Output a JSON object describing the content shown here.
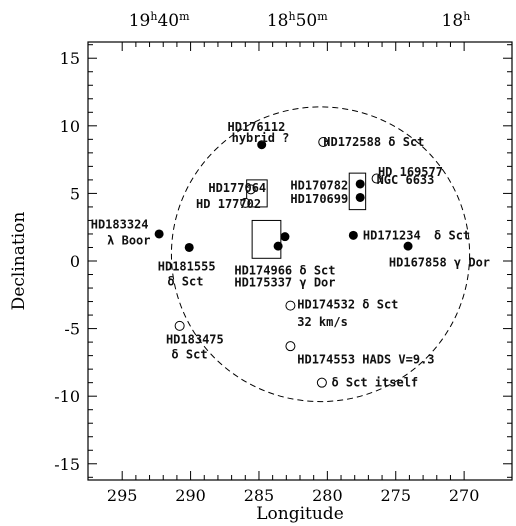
{
  "chart_data": {
    "type": "scatter",
    "title": "",
    "xlabel": "Longitude",
    "ylabel": "Declination",
    "xlim": [
      297.5,
      266.5
    ],
    "ylim": [
      -16.2,
      16.2
    ],
    "grid": false,
    "x_ticks": [
      295,
      290,
      285,
      280,
      275,
      270
    ],
    "y_ticks": [
      15,
      10,
      5,
      0,
      -5,
      -10,
      -15
    ],
    "top_axis_ticks": [
      {
        "lon": 292.3,
        "label": "19",
        "sup1": "h",
        "mid": "40",
        "sup2": "m"
      },
      {
        "lon": 282.2,
        "label": "18",
        "sup1": "h",
        "mid": "50",
        "sup2": "m"
      },
      {
        "lon": 270.6,
        "label": "18",
        "sup1": "h",
        "mid": "",
        "sup2": ""
      }
    ],
    "field_circle": {
      "center_lon": 280.5,
      "center_dec": 0.5,
      "radius_deg": 10.9
    },
    "boxes": [
      {
        "lon1": 284.4,
        "lon2": 285.9,
        "dec1": 6.0,
        "dec2": 4.0
      },
      {
        "lon1": 277.2,
        "lon2": 278.4,
        "dec1": 6.5,
        "dec2": 3.8
      },
      {
        "lon1": 283.4,
        "lon2": 285.5,
        "dec1": 3.0,
        "dec2": 0.2
      }
    ],
    "filled_points": [
      {
        "lon": 284.8,
        "dec": 8.6
      },
      {
        "lon": 277.6,
        "dec": 5.7
      },
      {
        "lon": 277.6,
        "dec": 4.7
      },
      {
        "lon": 292.3,
        "dec": 2.0
      },
      {
        "lon": 278.1,
        "dec": 1.9
      },
      {
        "lon": 283.1,
        "dec": 1.8
      },
      {
        "lon": 283.6,
        "dec": 1.1
      },
      {
        "lon": 290.1,
        "dec": 1.0
      },
      {
        "lon": 274.1,
        "dec": 1.1
      }
    ],
    "open_points": [
      {
        "lon": 280.3,
        "dec": 8.8
      },
      {
        "lon": 276.4,
        "dec": 6.1
      },
      {
        "lon": 285.6,
        "dec": 5.3
      },
      {
        "lon": 286.0,
        "dec": 4.3
      },
      {
        "lon": 282.7,
        "dec": -3.3
      },
      {
        "lon": 282.7,
        "dec": -6.3
      },
      {
        "lon": 290.8,
        "dec": -4.8
      },
      {
        "lon": 280.4,
        "dec": -9.0
      }
    ],
    "annotations": [
      {
        "text": "HD176112",
        "lon": 287.3,
        "dec": 9.9
      },
      {
        "text": "hybrid ?",
        "lon": 287.0,
        "dec": 9.1
      },
      {
        "text": "HD172588 δ Sct",
        "lon": 280.3,
        "dec": 8.8
      },
      {
        "text": "HD 169577",
        "lon": 276.3,
        "dec": 6.6
      },
      {
        "text": "NGC 6633",
        "lon": 276.4,
        "dec": 6.0
      },
      {
        "text": "HD177064",
        "lon": 288.7,
        "dec": 5.4
      },
      {
        "text": "HD170782",
        "lon": 282.7,
        "dec": 5.6
      },
      {
        "text": "HD 177702",
        "lon": 289.6,
        "dec": 4.2
      },
      {
        "text": "HD170699",
        "lon": 282.7,
        "dec": 4.6
      },
      {
        "text": "HD183324",
        "lon": 297.3,
        "dec": 2.7
      },
      {
        "text": "λ Boor",
        "lon": 296.1,
        "dec": 1.5
      },
      {
        "text": "HD171234",
        "lon": 277.4,
        "dec": 1.9
      },
      {
        "text": "δ Sct",
        "lon": 272.2,
        "dec": 1.9
      },
      {
        "text": "HD181555",
        "lon": 292.4,
        "dec": -0.4
      },
      {
        "text": "HD167858 γ Dor",
        "lon": 275.5,
        "dec": -0.1
      },
      {
        "text": "δ Sct",
        "lon": 291.7,
        "dec": -1.5
      },
      {
        "text": "HD174966 δ Sct",
        "lon": 286.8,
        "dec": -0.7
      },
      {
        "text": "HD175337 γ Dor",
        "lon": 286.8,
        "dec": -1.6
      },
      {
        "text": "HD174532 δ Sct",
        "lon": 282.2,
        "dec": -3.2
      },
      {
        "text": "32 km/s",
        "lon": 282.2,
        "dec": -4.5
      },
      {
        "text": "HD183475",
        "lon": 291.8,
        "dec": -5.8
      },
      {
        "text": "δ Sct",
        "lon": 291.4,
        "dec": -6.9
      },
      {
        "text": "HD174553 HADS V=9.3",
        "lon": 282.2,
        "dec": -7.3
      },
      {
        "text": "δ Sct itself",
        "lon": 279.7,
        "dec": -9.0
      }
    ]
  }
}
